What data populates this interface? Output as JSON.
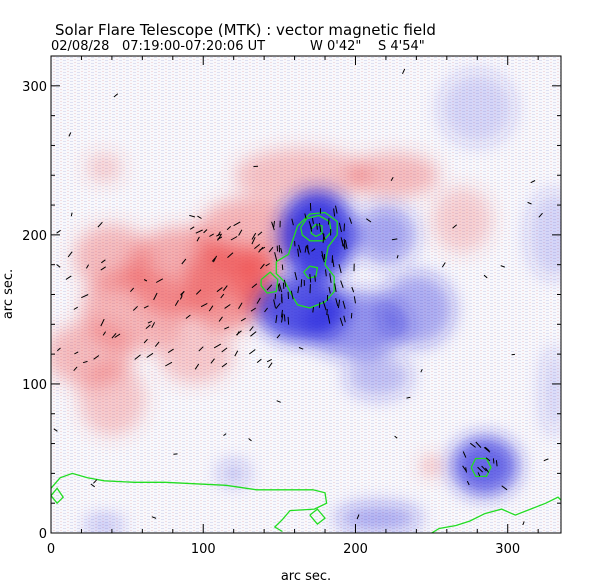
{
  "chart_data": {
    "type": "heatmap",
    "title": "Solar Flare Telescope (MTK) : vector magnetic field",
    "subtitle": {
      "date": "02/08/28",
      "time_range": "07:19:00-07:20:06 UT",
      "longitude": "W 0'42\"",
      "latitude": "S 4'54\""
    },
    "xlabel": "arc sec.",
    "ylabel": "arc sec.",
    "xlim": [
      0,
      335
    ],
    "ylim": [
      0,
      320
    ],
    "x_ticks": [
      0,
      100,
      200,
      300
    ],
    "y_ticks": [
      0,
      100,
      200,
      300
    ],
    "grid": false,
    "colors": {
      "positive_polarity": "#ee4444",
      "negative_polarity": "#2222dd",
      "contour": "#22dd22",
      "vectors": "#000000",
      "axes": "#000000"
    },
    "positive_regions": [
      {
        "x": 25,
        "y": 120,
        "rx": 28,
        "ry": 22,
        "intensity": 0.45
      },
      {
        "x": 55,
        "y": 150,
        "rx": 35,
        "ry": 28,
        "intensity": 0.5
      },
      {
        "x": 40,
        "y": 185,
        "rx": 25,
        "ry": 22,
        "intensity": 0.45
      },
      {
        "x": 85,
        "y": 175,
        "rx": 35,
        "ry": 30,
        "intensity": 0.55
      },
      {
        "x": 115,
        "y": 165,
        "rx": 28,
        "ry": 30,
        "intensity": 0.7
      },
      {
        "x": 135,
        "y": 170,
        "rx": 15,
        "ry": 22,
        "intensity": 0.8
      },
      {
        "x": 130,
        "y": 200,
        "rx": 35,
        "ry": 25,
        "intensity": 0.5
      },
      {
        "x": 165,
        "y": 240,
        "rx": 45,
        "ry": 18,
        "intensity": 0.4
      },
      {
        "x": 225,
        "y": 240,
        "rx": 30,
        "ry": 15,
        "intensity": 0.45
      },
      {
        "x": 270,
        "y": 210,
        "rx": 20,
        "ry": 22,
        "intensity": 0.3
      },
      {
        "x": 40,
        "y": 90,
        "rx": 22,
        "ry": 25,
        "intensity": 0.35
      },
      {
        "x": 95,
        "y": 120,
        "rx": 25,
        "ry": 20,
        "intensity": 0.35
      },
      {
        "x": 35,
        "y": 245,
        "rx": 12,
        "ry": 10,
        "intensity": 0.3
      },
      {
        "x": 250,
        "y": 45,
        "rx": 6,
        "ry": 6,
        "intensity": 0.6
      }
    ],
    "negative_regions": [
      {
        "x": 175,
        "y": 200,
        "rx": 25,
        "ry": 30,
        "intensity": 1.0
      },
      {
        "x": 165,
        "y": 150,
        "rx": 30,
        "ry": 22,
        "intensity": 0.9
      },
      {
        "x": 200,
        "y": 140,
        "rx": 35,
        "ry": 22,
        "intensity": 0.55
      },
      {
        "x": 220,
        "y": 200,
        "rx": 20,
        "ry": 20,
        "intensity": 0.45
      },
      {
        "x": 240,
        "y": 150,
        "rx": 25,
        "ry": 25,
        "intensity": 0.4
      },
      {
        "x": 285,
        "y": 45,
        "rx": 22,
        "ry": 20,
        "intensity": 0.8
      },
      {
        "x": 215,
        "y": 105,
        "rx": 22,
        "ry": 15,
        "intensity": 0.3
      },
      {
        "x": 215,
        "y": 10,
        "rx": 28,
        "ry": 10,
        "intensity": 0.4
      },
      {
        "x": 120,
        "y": 40,
        "rx": 10,
        "ry": 8,
        "intensity": 0.3
      },
      {
        "x": 330,
        "y": 200,
        "rx": 18,
        "ry": 30,
        "intensity": 0.2
      },
      {
        "x": 280,
        "y": 285,
        "rx": 25,
        "ry": 25,
        "intensity": 0.2
      },
      {
        "x": 35,
        "y": 5,
        "rx": 12,
        "ry": 6,
        "intensity": 0.35
      },
      {
        "x": 330,
        "y": 95,
        "rx": 8,
        "ry": 30,
        "intensity": 0.2
      }
    ],
    "contours": [
      {
        "points": [
          [
            148,
            182
          ],
          [
            156,
            187
          ],
          [
            158,
            194
          ],
          [
            162,
            206
          ],
          [
            170,
            214
          ],
          [
            180,
            215
          ],
          [
            188,
            209
          ],
          [
            188,
            200
          ],
          [
            182,
            192
          ],
          [
            180,
            180
          ],
          [
            186,
            172
          ],
          [
            186,
            162
          ],
          [
            180,
            155
          ],
          [
            170,
            151
          ],
          [
            162,
            153
          ],
          [
            158,
            160
          ],
          [
            154,
            168
          ],
          [
            148,
            174
          ],
          [
            148,
            182
          ]
        ]
      },
      {
        "points": [
          [
            164,
            205
          ],
          [
            168,
            211
          ],
          [
            176,
            213
          ],
          [
            183,
            209
          ],
          [
            184,
            202
          ],
          [
            179,
            196
          ],
          [
            170,
            196
          ],
          [
            165,
            200
          ],
          [
            164,
            205
          ]
        ]
      },
      {
        "points": [
          [
            171,
            204
          ],
          [
            174,
            207
          ],
          [
            178,
            206
          ],
          [
            178,
            201
          ],
          [
            174,
            199
          ],
          [
            171,
            201
          ],
          [
            171,
            204
          ]
        ]
      },
      {
        "points": [
          [
            166,
            175
          ],
          [
            170,
            179
          ],
          [
            175,
            178
          ],
          [
            174,
            172
          ],
          [
            169,
            171
          ],
          [
            166,
            175
          ]
        ]
      },
      {
        "points": [
          [
            138,
            170
          ],
          [
            144,
            175
          ],
          [
            149,
            170
          ],
          [
            148,
            162
          ],
          [
            142,
            161
          ],
          [
            138,
            166
          ],
          [
            138,
            170
          ]
        ]
      },
      {
        "points": [
          [
            276,
            44
          ],
          [
            279,
            50
          ],
          [
            286,
            50
          ],
          [
            289,
            44
          ],
          [
            286,
            38
          ],
          [
            279,
            38
          ],
          [
            276,
            44
          ]
        ]
      },
      {
        "points": [
          [
            0,
            30
          ],
          [
            6,
            37
          ],
          [
            14,
            40
          ],
          [
            24,
            37
          ],
          [
            35,
            35
          ],
          [
            55,
            34
          ],
          [
            75,
            34
          ],
          [
            95,
            33
          ],
          [
            115,
            32
          ],
          [
            135,
            29
          ],
          [
            158,
            29
          ],
          [
            172,
            29
          ],
          [
            180,
            27
          ],
          [
            181,
            20
          ],
          [
            173,
            16
          ],
          [
            157,
            15
          ],
          [
            152,
            9
          ],
          [
            147,
            4
          ],
          [
            152,
            1
          ]
        ]
      },
      {
        "points": [
          [
            0,
            25
          ],
          [
            4,
            30
          ],
          [
            8,
            24
          ],
          [
            4,
            20
          ],
          [
            0,
            25
          ]
        ]
      },
      {
        "points": [
          [
            250,
            0
          ],
          [
            255,
            3
          ],
          [
            266,
            5
          ],
          [
            275,
            8
          ],
          [
            285,
            13
          ],
          [
            296,
            16
          ],
          [
            305,
            12
          ],
          [
            315,
            16
          ],
          [
            325,
            20
          ],
          [
            333,
            24
          ],
          [
            335,
            22
          ]
        ]
      },
      {
        "points": [
          [
            170,
            12
          ],
          [
            175,
            16
          ],
          [
            180,
            10
          ],
          [
            175,
            6
          ],
          [
            170,
            12
          ]
        ]
      }
    ],
    "vector_clusters": [
      {
        "x_range": [
          5,
          150
        ],
        "y_range": [
          110,
          210
        ],
        "count": 95,
        "angle_deg": 45,
        "angle_jitter": 20,
        "length_arcsec": 4
      },
      {
        "x_range": [
          145,
          200
        ],
        "y_range": [
          140,
          220
        ],
        "count": 85,
        "angle_deg": 95,
        "angle_jitter": 15,
        "length_arcsec": 5
      },
      {
        "x_range": [
          270,
          300
        ],
        "y_range": [
          30,
          60
        ],
        "count": 16,
        "angle_deg": 120,
        "angle_jitter": 25,
        "length_arcsec": 4
      },
      {
        "x_range": [
          0,
          335
        ],
        "y_range": [
          0,
          320
        ],
        "count": 38,
        "angle_deg": 20,
        "angle_jitter": 60,
        "length_arcsec": 3
      }
    ]
  }
}
